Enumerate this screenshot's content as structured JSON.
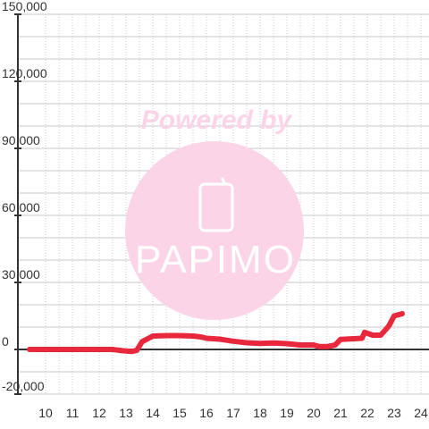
{
  "chart_data": {
    "type": "line",
    "title": "",
    "xlabel": "",
    "ylabel": "",
    "xlim": [
      9.4,
      24.4
    ],
    "ylim": [
      -20000,
      150000
    ],
    "x_ticks": [
      10,
      11,
      12,
      13,
      14,
      15,
      16,
      17,
      18,
      19,
      20,
      21,
      22,
      23,
      24
    ],
    "x_tick_labels": [
      "10",
      "11",
      "12",
      "13",
      "14",
      "15",
      "16",
      "17",
      "18",
      "19",
      "20",
      "21",
      "22",
      "23",
      "24"
    ],
    "y_ticks": [
      -20000,
      0,
      30000,
      60000,
      90000,
      120000,
      150000
    ],
    "y_tick_labels": [
      "-20,000",
      "0",
      "30,000",
      "60,000",
      "90,000",
      "120,000",
      "150,000"
    ],
    "grid": true,
    "legend": "none",
    "series": [
      {
        "color": "#e8283c",
        "x": [
          9.4,
          12.5,
          12.9,
          13.2,
          13.4,
          13.6,
          14.0,
          14.5,
          15.0,
          15.5,
          15.8,
          16.0,
          16.5,
          17.0,
          17.5,
          18.0,
          18.5,
          19.0,
          19.5,
          20.0,
          20.2,
          20.5,
          20.8,
          21.0,
          21.5,
          21.8,
          21.9,
          22.2,
          22.5,
          22.8,
          23.0,
          23.3
        ],
        "y": [
          0,
          0,
          -600,
          -900,
          -400,
          3500,
          6000,
          6200,
          6200,
          6000,
          5600,
          5000,
          4600,
          3700,
          3000,
          2700,
          2900,
          2600,
          2000,
          2000,
          1300,
          1300,
          2000,
          4500,
          4800,
          5000,
          7700,
          6400,
          6400,
          10500,
          15000,
          16000
        ]
      }
    ]
  },
  "watermark": {
    "line1": "Powered by",
    "brand": "PAPIMO",
    "color": "#fcd4e8",
    "glyph_color": "#ffffff"
  },
  "colors": {
    "grid_major": "#c8c8c8",
    "grid_minor": "#c8c8c8",
    "axis": "#333333",
    "line": "#e8283c"
  }
}
